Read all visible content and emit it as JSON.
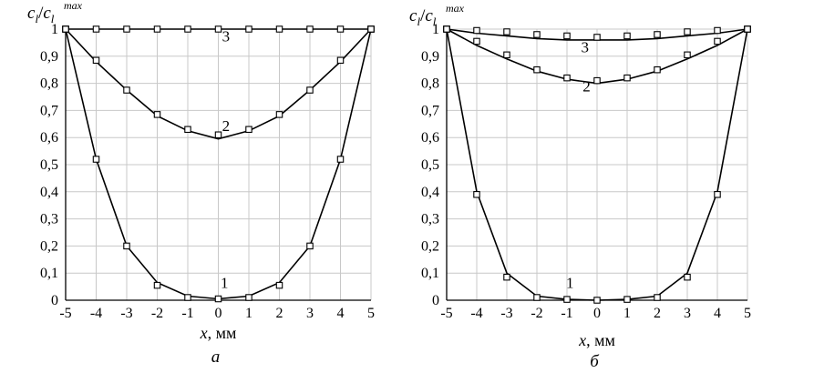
{
  "chart_data": [
    {
      "type": "line",
      "panel_label": "а",
      "ylabel_base": "c",
      "ylabel_sub": "l",
      "ylabel_sep": "/",
      "ylabel_sup": "max",
      "xlabel": "x",
      "xlabel_unit": ", мм",
      "xlim": [
        -5,
        5
      ],
      "ylim": [
        0,
        1
      ],
      "x_ticks": [
        -5,
        -4,
        -3,
        -2,
        -1,
        0,
        1,
        2,
        3,
        4,
        5
      ],
      "y_ticks": [
        0,
        0.1,
        0.2,
        0.3,
        0.4,
        0.5,
        0.6,
        0.7,
        0.8,
        0.9,
        1
      ],
      "y_tick_labels": [
        "0",
        "0,1",
        "0,2",
        "0,3",
        "0,4",
        "0,5",
        "0,6",
        "0,7",
        "0,8",
        "0,9",
        "1"
      ],
      "grid": true,
      "series": [
        {
          "label": "1",
          "label_x": 0.2,
          "label_y": 0.045,
          "line_x": [
            -5,
            -4,
            -3,
            -2,
            -1,
            0,
            1,
            2,
            3,
            4,
            5
          ],
          "line_y": [
            1,
            0.52,
            0.2,
            0.065,
            0.015,
            0.005,
            0.015,
            0.065,
            0.2,
            0.52,
            1
          ],
          "marker_x": [
            -5,
            -4,
            -3,
            -2,
            -1,
            0,
            1,
            2,
            3,
            4,
            5
          ],
          "marker_y": [
            1,
            0.52,
            0.2,
            0.055,
            0.01,
            0.005,
            0.01,
            0.055,
            0.2,
            0.52,
            1
          ]
        },
        {
          "label": "2",
          "label_x": 0.25,
          "label_y": 0.625,
          "line_x": [
            -5,
            -4,
            -3,
            -2,
            -1,
            0,
            1,
            2,
            3,
            4,
            5
          ],
          "line_y": [
            1,
            0.88,
            0.775,
            0.68,
            0.625,
            0.595,
            0.625,
            0.68,
            0.775,
            0.88,
            1
          ],
          "marker_x": [
            -5,
            -4,
            -3,
            -2,
            -1,
            0,
            1,
            2,
            3,
            4,
            5
          ],
          "marker_y": [
            1,
            0.885,
            0.775,
            0.685,
            0.63,
            0.61,
            0.63,
            0.685,
            0.775,
            0.885,
            1
          ]
        },
        {
          "label": "3",
          "label_x": 0.25,
          "label_y": 0.955,
          "line_x": [
            -5,
            5
          ],
          "line_y": [
            1,
            1
          ],
          "marker_x": [
            -5,
            -4,
            -3,
            -2,
            -1,
            0,
            1,
            2,
            3,
            4,
            5
          ],
          "marker_y": [
            1,
            1,
            1,
            1,
            1,
            1,
            1,
            1,
            1,
            1,
            1
          ]
        }
      ]
    },
    {
      "type": "line",
      "panel_label": "б",
      "ylabel_base": "c",
      "ylabel_sub": "l",
      "ylabel_sep": "/",
      "ylabel_sup": "max",
      "xlabel": "x",
      "xlabel_unit": ", мм",
      "xlim": [
        -5,
        5
      ],
      "ylim": [
        0,
        1
      ],
      "x_ticks": [
        -5,
        -4,
        -3,
        -2,
        -1,
        0,
        1,
        2,
        3,
        4,
        5
      ],
      "y_ticks": [
        0,
        0.1,
        0.2,
        0.3,
        0.4,
        0.5,
        0.6,
        0.7,
        0.8,
        0.9,
        1
      ],
      "y_tick_labels": [
        "0",
        "0,1",
        "0,2",
        "0,3",
        "0,4",
        "0,5",
        "0,6",
        "0,7",
        "0,8",
        "0,9",
        "1"
      ],
      "grid": true,
      "series": [
        {
          "label": "1",
          "label_x": -0.9,
          "label_y": 0.045,
          "line_x": [
            -5,
            -4,
            -3,
            -2,
            -1,
            0,
            1,
            2,
            3,
            4,
            5
          ],
          "line_y": [
            1,
            0.4,
            0.1,
            0.015,
            0.003,
            0.0,
            0.003,
            0.015,
            0.1,
            0.4,
            1
          ],
          "marker_x": [
            -5,
            -4,
            -3,
            -2,
            -1,
            0,
            1,
            2,
            3,
            4,
            5
          ],
          "marker_y": [
            1,
            0.39,
            0.085,
            0.01,
            0.003,
            0.0,
            0.003,
            0.01,
            0.085,
            0.39,
            1
          ]
        },
        {
          "label": "2",
          "label_x": -0.35,
          "label_y": 0.77,
          "line_x": [
            -5,
            -4,
            -3,
            -2,
            -1,
            0,
            1,
            2,
            3,
            4,
            5
          ],
          "line_y": [
            1,
            0.94,
            0.89,
            0.845,
            0.815,
            0.8,
            0.815,
            0.845,
            0.89,
            0.94,
            1
          ],
          "marker_x": [
            -5,
            -4,
            -3,
            -2,
            -1,
            0,
            1,
            2,
            3,
            4,
            5
          ],
          "marker_y": [
            1,
            0.955,
            0.905,
            0.85,
            0.82,
            0.81,
            0.82,
            0.85,
            0.905,
            0.955,
            1
          ]
        },
        {
          "label": "3",
          "label_x": -0.4,
          "label_y": 0.915,
          "line_x": [
            -5,
            -4,
            -3,
            -2,
            -1,
            0,
            1,
            2,
            3,
            4,
            5
          ],
          "line_y": [
            1,
            0.985,
            0.975,
            0.965,
            0.96,
            0.96,
            0.96,
            0.965,
            0.975,
            0.985,
            1
          ],
          "marker_x": [
            -5,
            -4,
            -3,
            -2,
            -1,
            0,
            1,
            2,
            3,
            4,
            5
          ],
          "marker_y": [
            1,
            0.995,
            0.99,
            0.98,
            0.975,
            0.97,
            0.975,
            0.98,
            0.99,
            0.995,
            1
          ]
        }
      ]
    }
  ]
}
